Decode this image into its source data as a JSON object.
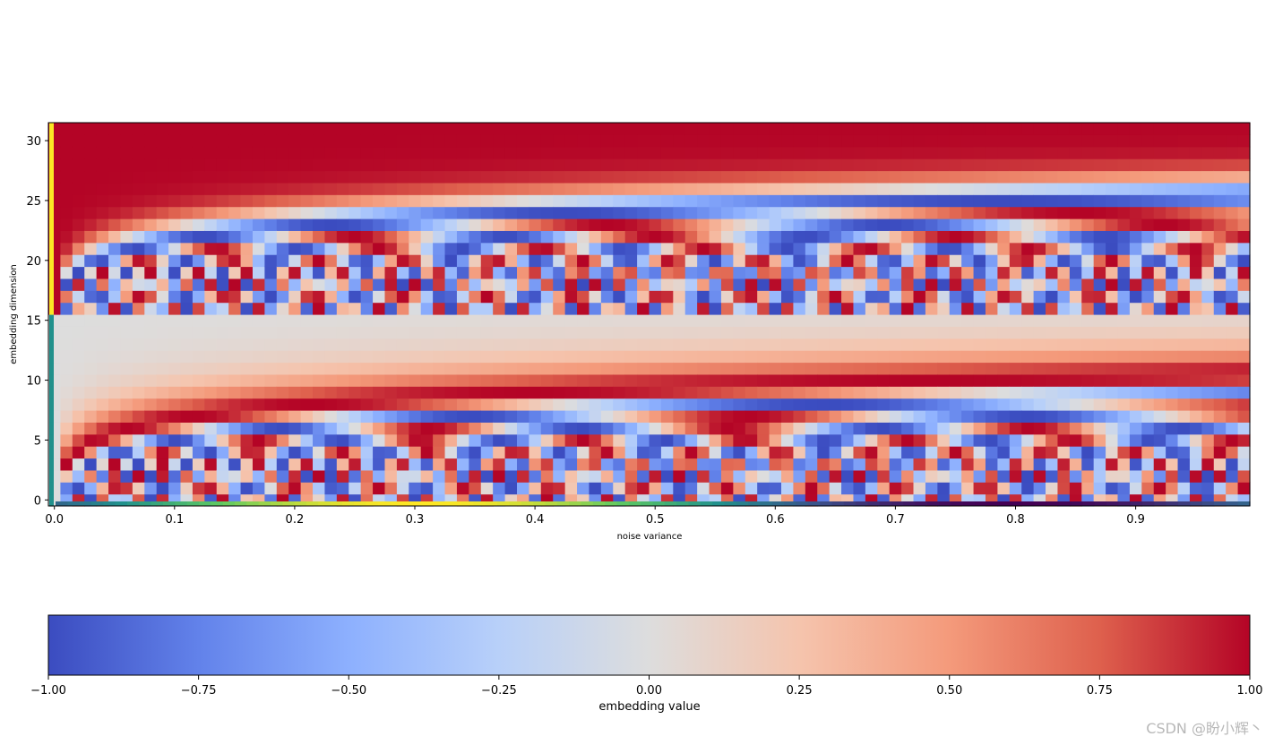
{
  "chart_data": {
    "type": "heatmap",
    "title": "",
    "xlabel": "noise variance",
    "ylabel": "embedding dimension",
    "x_ticks": [
      "0.0",
      "0.1",
      "0.2",
      "0.3",
      "0.4",
      "0.5",
      "0.6",
      "0.7",
      "0.8",
      "0.9"
    ],
    "y_ticks": [
      "0",
      "5",
      "10",
      "15",
      "20",
      "25",
      "30"
    ],
    "xlim": [
      -0.005,
      0.995
    ],
    "ylim": [
      -0.5,
      31.5
    ],
    "n_cols": 100,
    "n_rows": 32,
    "noise_step": 0.01,
    "embedding": {
      "kind": "sinusoidal",
      "half_dim": 16,
      "note_rows_0_15": "sin(t * freq_i)",
      "note_rows_16_31": "cos(t * freq_i)"
    },
    "colormap": "coolwarm",
    "value_range": [
      -1.0,
      1.0
    ],
    "colorbar": {
      "label": "embedding value",
      "ticks": [
        "−1.00",
        "−0.75",
        "−0.50",
        "−0.25",
        "0.00",
        "0.25",
        "0.50",
        "0.75",
        "1.00"
      ]
    },
    "marginal_bar_colormap": "viridis",
    "grid": false
  },
  "watermark": "CSDN @盼小辉丶"
}
